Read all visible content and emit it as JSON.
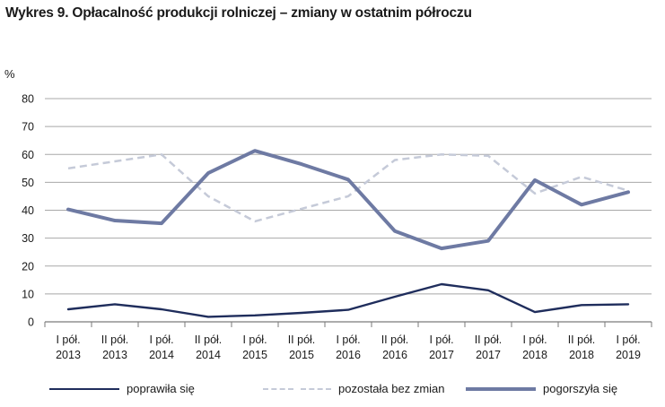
{
  "title": "Wykres 9. Opłacalność produkcji rolniczej – zmiany w ostatnim półroczu",
  "chart_data": {
    "type": "line",
    "title": "Wykres 9. Opłacalność produkcji rolniczej – zmiany w ostatnim półroczu",
    "ylabel": "%",
    "xlabel": "",
    "ylim": [
      0,
      80
    ],
    "yticks": [
      0,
      10,
      20,
      30,
      40,
      50,
      60,
      70,
      80
    ],
    "grid": true,
    "legend_position": "bottom",
    "categories": [
      [
        "I pół.",
        "2013"
      ],
      [
        "II pół.",
        "2013"
      ],
      [
        "I pół.",
        "2014"
      ],
      [
        "II pół.",
        "2014"
      ],
      [
        "I pół.",
        "2015"
      ],
      [
        "II pół.",
        "2015"
      ],
      [
        "I pół.",
        "2016"
      ],
      [
        "II pół.",
        "2016"
      ],
      [
        "I pół.",
        "2017"
      ],
      [
        "II pół.",
        "2017"
      ],
      [
        "I pół.",
        "2018"
      ],
      [
        "II pół.",
        "2018"
      ],
      [
        "I pół.",
        "2019"
      ]
    ],
    "series": [
      {
        "name": "poprawiła się",
        "color": "#1f2d5c",
        "style": "solid-thin",
        "values": [
          4.5,
          6.3,
          4.5,
          1.8,
          2.3,
          3.2,
          4.3,
          9.0,
          13.5,
          11.3,
          3.5,
          6.0,
          6.3
        ]
      },
      {
        "name": "pozostała bez zmian",
        "color": "#c5cad8",
        "style": "dashed",
        "values": [
          55,
          57.5,
          60,
          45,
          36,
          40.5,
          45,
          58,
          60,
          59.5,
          46,
          52,
          47
        ]
      },
      {
        "name": "pogorszyła się",
        "color": "#6e7aa3",
        "style": "solid-thick",
        "values": [
          40.3,
          36.3,
          35.3,
          53.3,
          61.3,
          56.5,
          51,
          32.5,
          26.3,
          29,
          50.8,
          42,
          46.5
        ]
      }
    ]
  }
}
